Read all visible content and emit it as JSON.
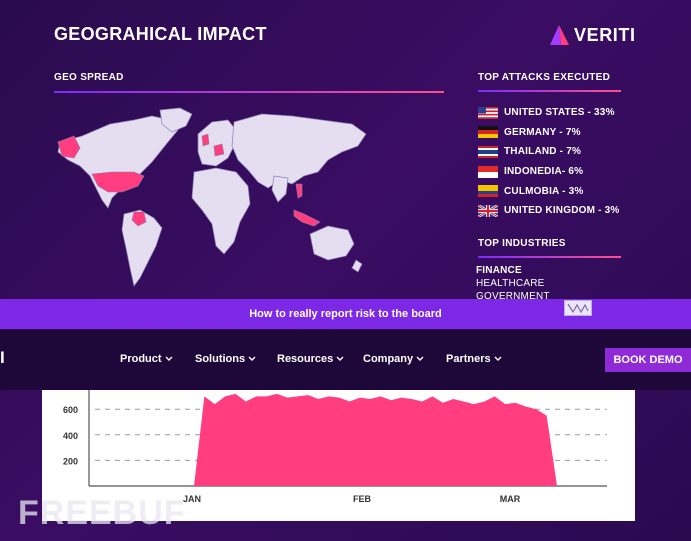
{
  "header": {
    "title": "GEOGRAHICAL IMPACT",
    "logo_text": "VERITI"
  },
  "geo_spread": {
    "label": "GEO SPREAD"
  },
  "top_attacks": {
    "label": "TOP ATTACKS EXECUTED",
    "items": [
      {
        "label": "UNITED STATES - 33%",
        "flag": "us-flag-icon"
      },
      {
        "label": "GERMANY - 7%",
        "flag": "germany-flag-icon"
      },
      {
        "label": "THAILAND - 7%",
        "flag": "thailand-flag-icon"
      },
      {
        "label": "INDONEDIA- 6%",
        "flag": "indonesia-flag-icon"
      },
      {
        "label": "CULMOBIA - 3%",
        "flag": "colombia-flag-icon"
      },
      {
        "label": "UNITED KINGDOM - 3%",
        "flag": "uk-flag-icon"
      }
    ]
  },
  "top_industries": {
    "label": "TOP INDUSTRIES",
    "items": [
      "FINANCE",
      "HEALTHCARE",
      "GOVERNMENT"
    ]
  },
  "banner": {
    "text": "How to really report risk to the board"
  },
  "nav": {
    "logo_fragment": "I",
    "items": [
      "Product",
      "Solutions",
      "Resources",
      "Company",
      "Partners"
    ],
    "cta": "BOOK DEMO"
  },
  "colors": {
    "accent": "#ff3d7f",
    "nav_bg": "#1d0839",
    "banner": "#7c28e6",
    "map_land": "#e4def0"
  },
  "chart_data": {
    "type": "area",
    "x_ticks": [
      "JAN",
      "FEB",
      "MAR"
    ],
    "y_ticks": [
      200,
      400,
      600
    ],
    "ylim": [
      0,
      750
    ],
    "x": [
      0,
      1,
      2,
      3,
      4,
      5,
      6,
      7,
      8,
      9,
      10,
      11,
      12,
      13,
      14,
      15,
      16,
      17,
      18,
      19,
      20,
      21,
      22,
      23,
      24,
      25,
      26,
      27,
      28,
      29,
      30,
      31,
      32,
      33,
      34,
      35
    ],
    "values": [
      0,
      700,
      640,
      700,
      720,
      660,
      700,
      700,
      720,
      690,
      700,
      710,
      680,
      700,
      690,
      660,
      690,
      680,
      700,
      670,
      690,
      680,
      660,
      700,
      650,
      680,
      660,
      640,
      660,
      700,
      640,
      650,
      620,
      600,
      550,
      0
    ],
    "color": "#ff3d7f",
    "watermark": "FREEBUF"
  }
}
